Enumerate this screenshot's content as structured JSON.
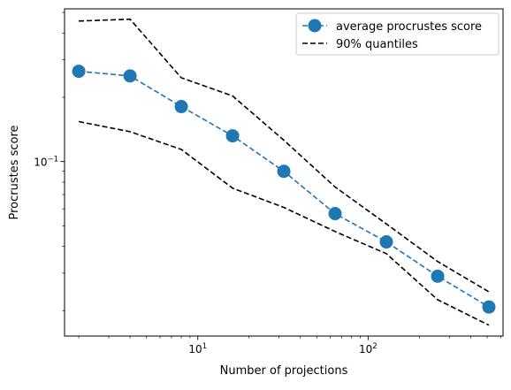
{
  "chart_data": {
    "type": "line",
    "title": "",
    "xlabel": "Number of projections",
    "ylabel": "Procrustes score",
    "xscale": "log",
    "yscale": "log",
    "xlim": [
      1.65,
      620
    ],
    "ylim": [
      0.0152,
      0.52
    ],
    "grid": false,
    "legend_position": "top-right",
    "x": [
      2,
      4,
      8,
      16,
      32,
      64,
      128,
      256,
      512
    ],
    "x_major_ticks": [
      {
        "value": 10,
        "base": "10",
        "exp": "1"
      },
      {
        "value": 100,
        "base": "10",
        "exp": "2"
      }
    ],
    "y_major_ticks": [
      {
        "value": 0.1,
        "base": "10",
        "exp": "−1"
      }
    ],
    "series": [
      {
        "name": "average procrustes score",
        "style": "marker-dashed",
        "color": "#1f77b4",
        "values": [
          0.265,
          0.252,
          0.181,
          0.132,
          0.09,
          0.057,
          0.042,
          0.029,
          0.0208
        ]
      },
      {
        "name": "90% quantiles",
        "style": "dashed",
        "color": "#000000",
        "show_in_legend": true,
        "values": [
          0.456,
          0.465,
          0.247,
          0.203,
          0.126,
          0.076,
          0.051,
          0.034,
          0.0245
        ]
      },
      {
        "name": "",
        "style": "dashed",
        "color": "#000000",
        "show_in_legend": false,
        "values": [
          0.154,
          0.138,
          0.114,
          0.075,
          0.061,
          0.047,
          0.037,
          0.0225,
          0.0171
        ]
      }
    ]
  }
}
